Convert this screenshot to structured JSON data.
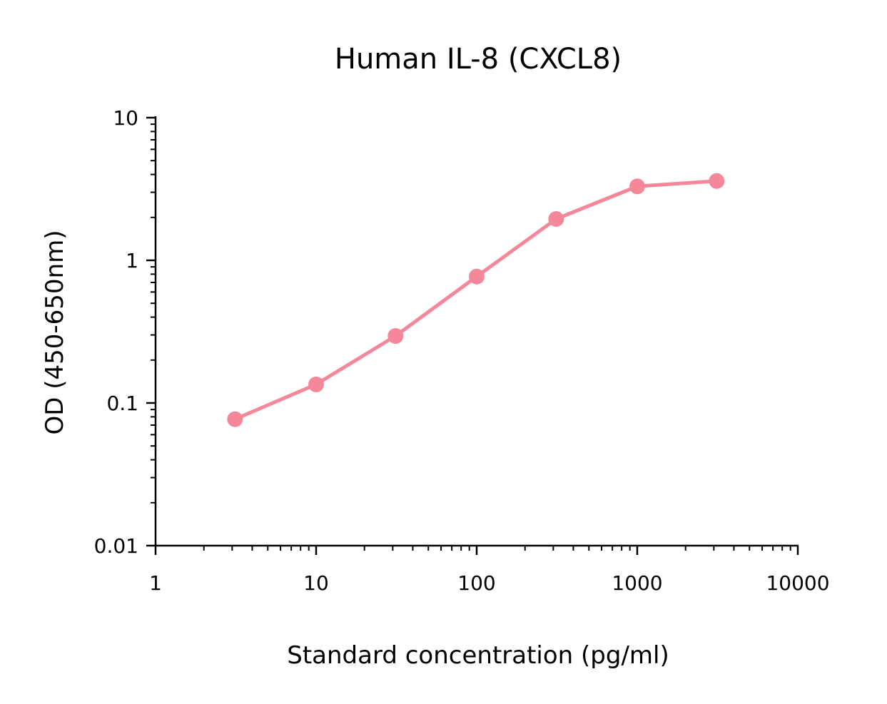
{
  "chart_data": {
    "type": "line",
    "title": "Human IL-8 (CXCL8)",
    "xlabel": "Standard concentration (pg/ml)",
    "ylabel": "OD (450-650nm)",
    "xscale": "log",
    "yscale": "log",
    "xlim": [
      1,
      10000
    ],
    "ylim": [
      0.01,
      10
    ],
    "x_ticks": [
      1,
      10,
      100,
      1000,
      10000
    ],
    "x_tick_labels": [
      "1",
      "10",
      "100",
      "1000",
      "10000"
    ],
    "y_ticks": [
      0.01,
      0.1,
      1,
      10
    ],
    "y_tick_labels": [
      "0.01",
      "0.1",
      "1",
      "10"
    ],
    "grid": false,
    "series": [
      {
        "name": "Human IL-8 (CXCL8)",
        "color": "#f4889a",
        "x": [
          3.125,
          10,
          31.25,
          100,
          312.5,
          1000,
          3125
        ],
        "y": [
          0.077,
          0.135,
          0.295,
          0.77,
          1.95,
          3.3,
          3.6
        ]
      }
    ]
  }
}
